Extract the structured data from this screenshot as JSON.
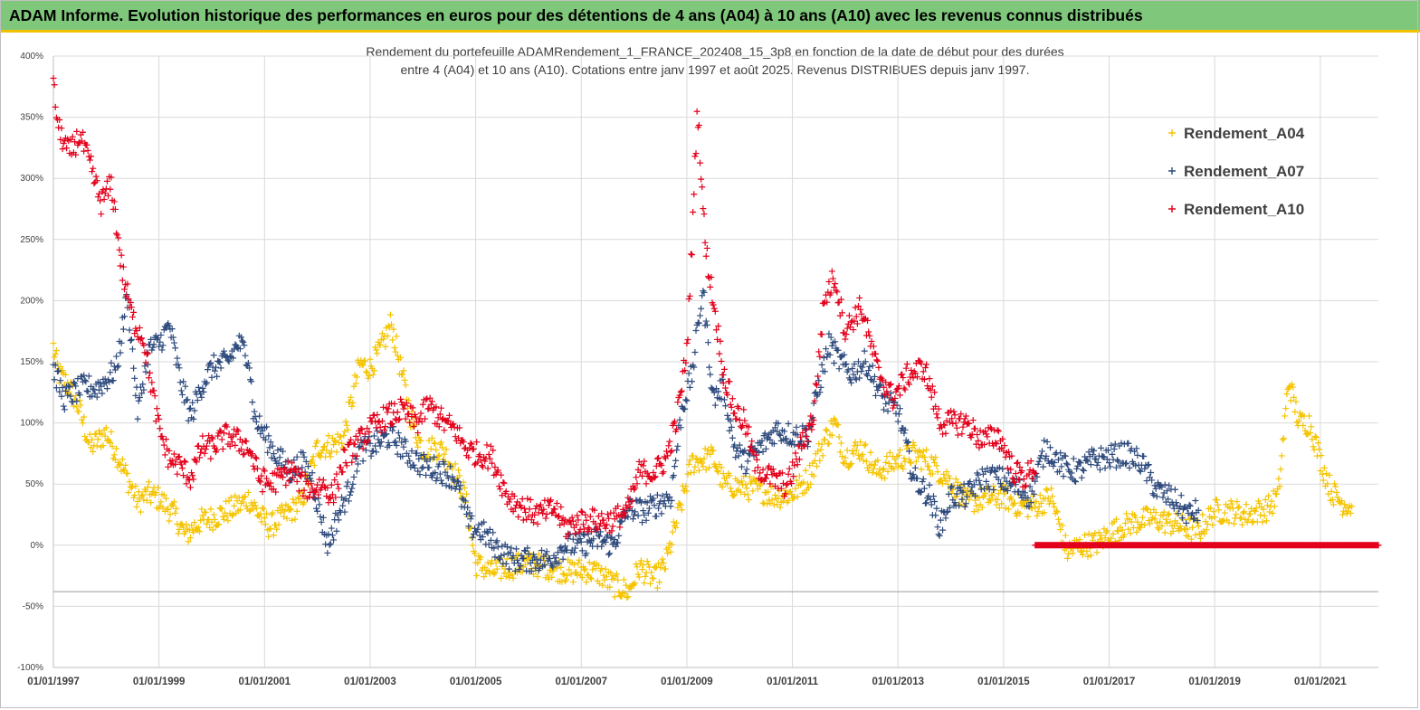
{
  "banner": {
    "title": "ADAM Informe. Evolution historique des performances en euros pour des détentions de 4 ans (A04) à 10 ans (A10) avec les revenus connus distribués"
  },
  "colors": {
    "banner": "#7fc77b",
    "accent": "#f2c200",
    "A04": "#f5c400",
    "A07": "#2e4a7d",
    "A10": "#e3001b"
  },
  "chart_data": {
    "type": "scatter",
    "title_line1": "Rendement du portefeuille ADAMRendement_1_FRANCE_202408_15_3p8  en fonction de la date de début pour des durées",
    "title_line2": "entre 4 (A04) et 10 ans (A10). Cotations  entre janv 1997 et août 2025. Revenus DISTRIBUES depuis janv 1997.",
    "x_ticks": [
      "01/01/1997",
      "01/01/1999",
      "01/01/2001",
      "01/01/2003",
      "01/01/2005",
      "01/01/2007",
      "01/01/2009",
      "01/01/2011",
      "01/01/2013",
      "01/01/2015",
      "01/01/2017",
      "01/01/2019",
      "01/01/2021"
    ],
    "y_ticks": [
      "400%",
      "350%",
      "300%",
      "250%",
      "200%",
      "150%",
      "100%",
      "50%",
      "0%",
      "-50%",
      "-100%"
    ],
    "xlim": [
      1997.0,
      2022.1
    ],
    "ylim": [
      -100,
      400
    ],
    "reference_line_y": -38,
    "legend_position": "top-right",
    "grid": true,
    "marker": "+",
    "series": [
      {
        "name": "Rendement_A04",
        "color_key": "A04",
        "anchors": [
          [
            1997.0,
            162
          ],
          [
            1997.1,
            140
          ],
          [
            1997.3,
            130
          ],
          [
            1997.5,
            110
          ],
          [
            1997.7,
            80
          ],
          [
            1997.9,
            88
          ],
          [
            1998.0,
            92
          ],
          [
            1998.2,
            75
          ],
          [
            1998.4,
            55
          ],
          [
            1998.6,
            35
          ],
          [
            1998.8,
            42
          ],
          [
            1999.0,
            38
          ],
          [
            1999.3,
            25
          ],
          [
            1999.5,
            8
          ],
          [
            1999.8,
            20
          ],
          [
            2000.0,
            22
          ],
          [
            2000.3,
            28
          ],
          [
            2000.5,
            32
          ],
          [
            2000.7,
            38
          ],
          [
            2000.9,
            25
          ],
          [
            2001.1,
            15
          ],
          [
            2001.3,
            22
          ],
          [
            2001.5,
            28
          ],
          [
            2001.7,
            35
          ],
          [
            2002.0,
            80
          ],
          [
            2002.3,
            82
          ],
          [
            2002.5,
            88
          ],
          [
            2002.8,
            148
          ],
          [
            2003.0,
            145
          ],
          [
            2003.2,
            160
          ],
          [
            2003.4,
            182
          ],
          [
            2003.6,
            140
          ],
          [
            2003.8,
            100
          ],
          [
            2004.0,
            78
          ],
          [
            2004.3,
            80
          ],
          [
            2004.5,
            70
          ],
          [
            2004.8,
            40
          ],
          [
            2005.0,
            -15
          ],
          [
            2005.3,
            -22
          ],
          [
            2005.6,
            -18
          ],
          [
            2006.0,
            -15
          ],
          [
            2006.4,
            -18
          ],
          [
            2006.8,
            -22
          ],
          [
            2007.0,
            -20
          ],
          [
            2007.3,
            -22
          ],
          [
            2007.6,
            -32
          ],
          [
            2007.9,
            -38
          ],
          [
            2008.1,
            -18
          ],
          [
            2008.4,
            -28
          ],
          [
            2008.6,
            -15
          ],
          [
            2008.9,
            35
          ],
          [
            2009.1,
            68
          ],
          [
            2009.3,
            70
          ],
          [
            2009.5,
            72
          ],
          [
            2009.7,
            50
          ],
          [
            2010.0,
            48
          ],
          [
            2010.4,
            45
          ],
          [
            2010.7,
            40
          ],
          [
            2011.0,
            42
          ],
          [
            2011.3,
            55
          ],
          [
            2011.6,
            85
          ],
          [
            2011.8,
            100
          ],
          [
            2012.0,
            72
          ],
          [
            2012.3,
            80
          ],
          [
            2012.6,
            60
          ],
          [
            2013.0,
            70
          ],
          [
            2013.3,
            75
          ],
          [
            2013.6,
            68
          ],
          [
            2014.0,
            52
          ],
          [
            2014.3,
            35
          ],
          [
            2014.6,
            38
          ],
          [
            2015.0,
            40
          ],
          [
            2015.3,
            32
          ],
          [
            2015.6,
            32
          ],
          [
            2015.9,
            40
          ],
          [
            2016.2,
            -5
          ],
          [
            2016.5,
            0
          ],
          [
            2016.8,
            2
          ],
          [
            2017.0,
            10
          ],
          [
            2017.4,
            18
          ],
          [
            2017.8,
            22
          ],
          [
            2018.0,
            20
          ],
          [
            2018.4,
            15
          ],
          [
            2018.7,
            12
          ],
          [
            2019.0,
            28
          ],
          [
            2019.3,
            28
          ],
          [
            2019.6,
            25
          ],
          [
            2020.0,
            30
          ],
          [
            2020.2,
            40
          ],
          [
            2020.4,
            135
          ],
          [
            2020.6,
            100
          ],
          [
            2020.8,
            100
          ],
          [
            2021.0,
            70
          ],
          [
            2021.2,
            45
          ],
          [
            2021.4,
            35
          ],
          [
            2021.6,
            32
          ]
        ],
        "jitter": 10
      },
      {
        "name": "Rendement_A07",
        "color_key": "A07",
        "anchors": [
          [
            1997.0,
            145
          ],
          [
            1997.2,
            120
          ],
          [
            1997.4,
            125
          ],
          [
            1997.6,
            130
          ],
          [
            1997.8,
            128
          ],
          [
            1998.0,
            135
          ],
          [
            1998.2,
            145
          ],
          [
            1998.4,
            205
          ],
          [
            1998.6,
            108
          ],
          [
            1998.8,
            160
          ],
          [
            1999.0,
            165
          ],
          [
            1999.2,
            180
          ],
          [
            1999.4,
            135
          ],
          [
            1999.6,
            105
          ],
          [
            1999.8,
            130
          ],
          [
            2000.0,
            145
          ],
          [
            2000.3,
            150
          ],
          [
            2000.5,
            165
          ],
          [
            2000.7,
            155
          ],
          [
            2000.8,
            105
          ],
          [
            2001.0,
            90
          ],
          [
            2001.2,
            75
          ],
          [
            2001.5,
            60
          ],
          [
            2001.7,
            68
          ],
          [
            2001.9,
            55
          ],
          [
            2002.0,
            35
          ],
          [
            2002.2,
            0
          ],
          [
            2002.4,
            25
          ],
          [
            2002.6,
            45
          ],
          [
            2002.8,
            78
          ],
          [
            2003.0,
            80
          ],
          [
            2003.2,
            85
          ],
          [
            2003.4,
            90
          ],
          [
            2003.7,
            75
          ],
          [
            2004.0,
            65
          ],
          [
            2004.3,
            62
          ],
          [
            2004.6,
            55
          ],
          [
            2004.9,
            15
          ],
          [
            2005.1,
            12
          ],
          [
            2005.4,
            -2
          ],
          [
            2005.7,
            -12
          ],
          [
            2006.0,
            -12
          ],
          [
            2006.4,
            -12
          ],
          [
            2006.7,
            0
          ],
          [
            2007.0,
            0
          ],
          [
            2007.3,
            5
          ],
          [
            2007.6,
            0
          ],
          [
            2007.9,
            30
          ],
          [
            2008.2,
            28
          ],
          [
            2008.5,
            35
          ],
          [
            2008.7,
            40
          ],
          [
            2008.9,
            110
          ],
          [
            2009.1,
            140
          ],
          [
            2009.3,
            210
          ],
          [
            2009.5,
            120
          ],
          [
            2009.7,
            130
          ],
          [
            2009.9,
            80
          ],
          [
            2010.1,
            68
          ],
          [
            2010.4,
            80
          ],
          [
            2010.7,
            95
          ],
          [
            2011.0,
            90
          ],
          [
            2011.3,
            90
          ],
          [
            2011.5,
            130
          ],
          [
            2011.7,
            165
          ],
          [
            2011.9,
            150
          ],
          [
            2012.1,
            140
          ],
          [
            2012.4,
            150
          ],
          [
            2012.7,
            120
          ],
          [
            2013.0,
            110
          ],
          [
            2013.3,
            55
          ],
          [
            2013.6,
            40
          ],
          [
            2013.8,
            15
          ],
          [
            2014.0,
            40
          ],
          [
            2014.3,
            40
          ],
          [
            2014.6,
            55
          ],
          [
            2014.9,
            55
          ],
          [
            2015.2,
            48
          ],
          [
            2015.5,
            40
          ],
          [
            2015.8,
            80
          ],
          [
            2016.1,
            65
          ],
          [
            2016.4,
            60
          ],
          [
            2016.7,
            70
          ],
          [
            2017.0,
            72
          ],
          [
            2017.3,
            75
          ],
          [
            2017.6,
            68
          ],
          [
            2017.9,
            45
          ],
          [
            2018.2,
            38
          ],
          [
            2018.5,
            25
          ],
          [
            2018.7,
            28
          ]
        ],
        "jitter": 10
      },
      {
        "name": "Rendement_A10",
        "color_key": "A10",
        "anchors": [
          [
            1997.0,
            375
          ],
          [
            1997.1,
            340
          ],
          [
            1997.3,
            320
          ],
          [
            1997.5,
            335
          ],
          [
            1997.7,
            310
          ],
          [
            1997.9,
            280
          ],
          [
            1998.1,
            295
          ],
          [
            1998.2,
            260
          ],
          [
            1998.3,
            225
          ],
          [
            1998.5,
            185
          ],
          [
            1998.7,
            170
          ],
          [
            1998.9,
            120
          ],
          [
            1999.0,
            95
          ],
          [
            1999.2,
            70
          ],
          [
            1999.4,
            65
          ],
          [
            1999.6,
            55
          ],
          [
            1999.8,
            80
          ],
          [
            2000.0,
            80
          ],
          [
            2000.3,
            90
          ],
          [
            2000.5,
            85
          ],
          [
            2000.7,
            80
          ],
          [
            2000.9,
            55
          ],
          [
            2001.1,
            50
          ],
          [
            2001.3,
            55
          ],
          [
            2001.5,
            62
          ],
          [
            2001.7,
            50
          ],
          [
            2001.9,
            45
          ],
          [
            2002.1,
            50
          ],
          [
            2002.3,
            40
          ],
          [
            2002.5,
            70
          ],
          [
            2002.8,
            85
          ],
          [
            2003.0,
            95
          ],
          [
            2003.3,
            105
          ],
          [
            2003.6,
            110
          ],
          [
            2003.9,
            100
          ],
          [
            2004.1,
            115
          ],
          [
            2004.4,
            100
          ],
          [
            2004.6,
            95
          ],
          [
            2004.8,
            80
          ],
          [
            2005.0,
            75
          ],
          [
            2005.3,
            72
          ],
          [
            2005.6,
            40
          ],
          [
            2005.9,
            30
          ],
          [
            2006.2,
            25
          ],
          [
            2006.5,
            30
          ],
          [
            2006.7,
            15
          ],
          [
            2007.0,
            20
          ],
          [
            2007.3,
            20
          ],
          [
            2007.6,
            20
          ],
          [
            2007.9,
            30
          ],
          [
            2008.1,
            60
          ],
          [
            2008.4,
            60
          ],
          [
            2008.6,
            70
          ],
          [
            2008.8,
            100
          ],
          [
            2009.0,
            160
          ],
          [
            2009.1,
            250
          ],
          [
            2009.2,
            360
          ],
          [
            2009.35,
            245
          ],
          [
            2009.5,
            200
          ],
          [
            2009.7,
            140
          ],
          [
            2009.9,
            110
          ],
          [
            2010.1,
            100
          ],
          [
            2010.3,
            65
          ],
          [
            2010.6,
            55
          ],
          [
            2010.9,
            48
          ],
          [
            2011.2,
            85
          ],
          [
            2011.4,
            105
          ],
          [
            2011.6,
            200
          ],
          [
            2011.8,
            220
          ],
          [
            2012.0,
            175
          ],
          [
            2012.3,
            195
          ],
          [
            2012.6,
            145
          ],
          [
            2012.9,
            120
          ],
          [
            2013.2,
            140
          ],
          [
            2013.5,
            145
          ],
          [
            2013.8,
            100
          ],
          [
            2014.0,
            100
          ],
          [
            2014.3,
            100
          ],
          [
            2014.6,
            85
          ],
          [
            2014.9,
            90
          ],
          [
            2015.2,
            60
          ],
          [
            2015.4,
            55
          ],
          [
            2015.6,
            65
          ]
        ],
        "tail": {
          "from": 2015.6,
          "to": 2022.1,
          "value": 0
        },
        "jitter": 10
      }
    ]
  }
}
